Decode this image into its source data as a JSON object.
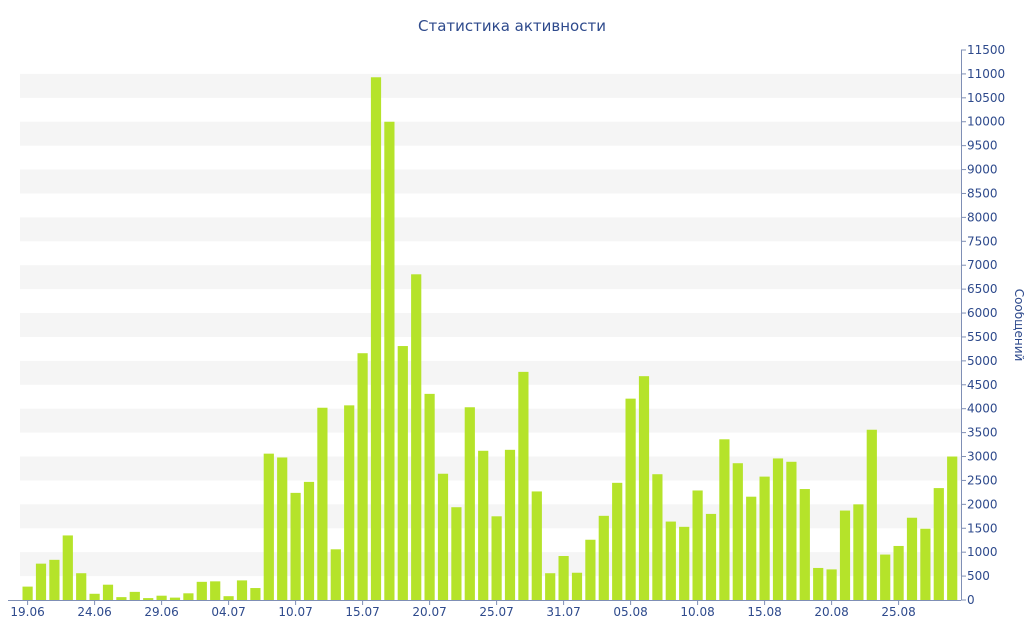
{
  "chart_data": {
    "type": "bar",
    "title": "Статистика активности",
    "ylabel": "Сообщений",
    "xlabel": "",
    "ylim": [
      0,
      11500
    ],
    "y_ticks": [
      0,
      500,
      1000,
      1500,
      2000,
      2500,
      3000,
      3500,
      4000,
      4500,
      5000,
      5500,
      6000,
      6500,
      7000,
      7500,
      8000,
      8500,
      9000,
      9500,
      10000,
      10500,
      11000,
      11500
    ],
    "y_axis_position": "right",
    "x_tick_labels": [
      {
        "index": 0,
        "label": "19.06"
      },
      {
        "index": 5,
        "label": "24.06"
      },
      {
        "index": 10,
        "label": "29.06"
      },
      {
        "index": 15,
        "label": "04.07"
      },
      {
        "index": 20,
        "label": "10.07"
      },
      {
        "index": 25,
        "label": "15.07"
      },
      {
        "index": 30,
        "label": "20.07"
      },
      {
        "index": 35,
        "label": "25.07"
      },
      {
        "index": 40,
        "label": "31.07"
      },
      {
        "index": 45,
        "label": "05.08"
      },
      {
        "index": 50,
        "label": "10.08"
      },
      {
        "index": 55,
        "label": "15.08"
      },
      {
        "index": 60,
        "label": "20.08"
      },
      {
        "index": 65,
        "label": "25.08"
      }
    ],
    "bar_color": "#b5e32a",
    "band_color": "#f5f5f5",
    "text_color": "#2e4a8c",
    "grid": "alternating horizontal bands",
    "values": [
      280,
      760,
      840,
      1350,
      560,
      130,
      320,
      60,
      170,
      40,
      90,
      50,
      140,
      380,
      390,
      80,
      410,
      250,
      3060,
      2980,
      2240,
      2470,
      4020,
      1060,
      4070,
      5160,
      10930,
      10000,
      5310,
      6810,
      4310,
      2640,
      1940,
      4030,
      3120,
      1750,
      3140,
      4770,
      2270,
      560,
      920,
      570,
      1260,
      1760,
      2450,
      4210,
      4680,
      2630,
      1640,
      1530,
      2290,
      1800,
      3360,
      2860,
      2160,
      2580,
      2960,
      2890,
      2320,
      670,
      640,
      1870,
      2000,
      3560,
      950,
      1130,
      1720,
      1490,
      2340,
      3000
    ]
  }
}
